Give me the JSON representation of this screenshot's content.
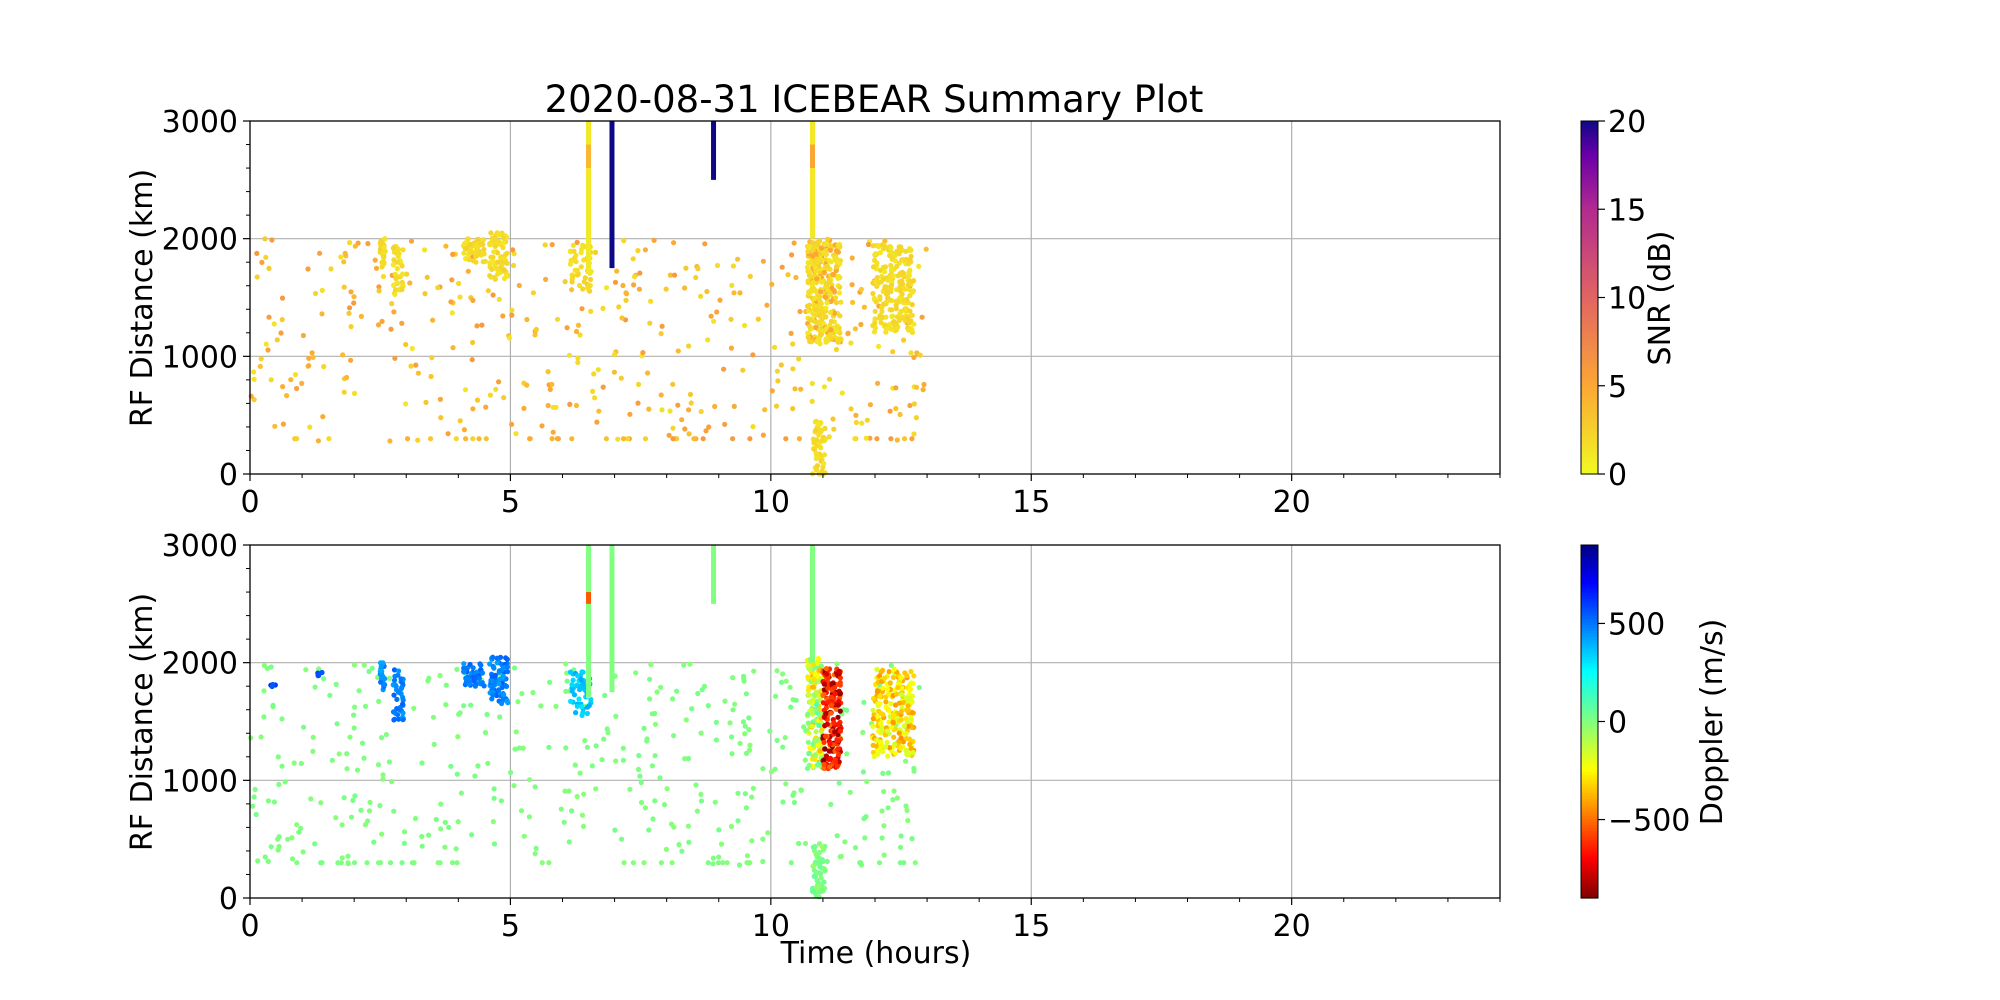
{
  "figure": {
    "title": "2020-08-31 ICEBEAR Summary Plot",
    "xlabel": "Time (hours)"
  },
  "chart_data": [
    {
      "type": "scatter",
      "panel": "top",
      "title": "2020-08-31 ICEBEAR Summary Plot",
      "xlabel": "",
      "ylabel": "RF Distance (km)",
      "xlim": [
        0,
        24
      ],
      "ylim": [
        0,
        3000
      ],
      "xticks": [
        0,
        5,
        10,
        15,
        20
      ],
      "yticks": [
        0,
        1000,
        2000,
        3000
      ],
      "grid": true,
      "color_field": "snr",
      "colorbar": {
        "label": "SNR (dB)",
        "min": 0,
        "max": 20,
        "ticks": [
          0,
          5,
          10,
          15,
          20
        ],
        "colormap": "plasma_r"
      },
      "vertical_streaks": [
        {
          "x": 6.5,
          "y0": 1700,
          "y1": 3000,
          "snr": 1,
          "mid_snr": 4
        },
        {
          "x": 6.95,
          "y0": 1750,
          "y1": 3000,
          "snr": 20
        },
        {
          "x": 8.9,
          "y0": 2500,
          "y1": 3000,
          "snr": 20
        },
        {
          "x": 10.8,
          "y0": 2000,
          "y1": 3000,
          "snr": 1,
          "mid_snr": 5
        }
      ],
      "clusters": [
        {
          "x0": 2.5,
          "x1": 2.6,
          "y0": 1750,
          "y1": 2000,
          "n": 25,
          "snr": 1
        },
        {
          "x0": 2.75,
          "x1": 2.95,
          "y0": 1500,
          "y1": 1950,
          "n": 40,
          "snr": 1
        },
        {
          "x0": 4.1,
          "x1": 4.5,
          "y0": 1800,
          "y1": 2000,
          "n": 50,
          "snr": 1
        },
        {
          "x0": 4.6,
          "x1": 4.95,
          "y0": 1650,
          "y1": 2050,
          "n": 70,
          "snr": 1
        },
        {
          "x0": 6.15,
          "x1": 6.55,
          "y0": 1550,
          "y1": 1950,
          "n": 50,
          "snr": 1
        },
        {
          "x0": 10.7,
          "x1": 11.35,
          "y0": 1100,
          "y1": 2000,
          "n": 320,
          "snr": 1,
          "speckle_snr": 5
        },
        {
          "x0": 10.8,
          "x1": 11.05,
          "y0": 0,
          "y1": 450,
          "n": 60,
          "snr": 1
        },
        {
          "x0": 11.95,
          "x1": 12.75,
          "y0": 1200,
          "y1": 1950,
          "n": 230,
          "snr": 1
        }
      ],
      "scatter": {
        "x0": 0,
        "x1": 13.0,
        "y0": 280,
        "y1": 2000,
        "n": 420,
        "snr_low": 1,
        "snr_high": 6
      }
    },
    {
      "type": "scatter",
      "panel": "bottom",
      "xlabel": "Time (hours)",
      "ylabel": "RF Distance (km)",
      "xlim": [
        0,
        24
      ],
      "ylim": [
        0,
        3000
      ],
      "xticks": [
        0,
        5,
        10,
        15,
        20
      ],
      "yticks": [
        0,
        1000,
        2000,
        3000
      ],
      "grid": true,
      "color_field": "doppler",
      "colorbar": {
        "label": "Doppler (m/s)",
        "min": -900,
        "max": 900,
        "ticks": [
          -500,
          0,
          500
        ],
        "colormap": "jet_r"
      },
      "vertical_streaks": [
        {
          "x": 6.5,
          "y0": 1700,
          "y1": 3000,
          "doppler": 0,
          "band": {
            "y0": 2500,
            "y1": 2600,
            "doppler": -550
          }
        },
        {
          "x": 6.95,
          "y0": 1750,
          "y1": 3000,
          "doppler": 0
        },
        {
          "x": 8.9,
          "y0": 2500,
          "y1": 3000,
          "doppler": 0
        },
        {
          "x": 10.8,
          "y0": 2000,
          "y1": 3000,
          "doppler": 0
        }
      ],
      "clusters": [
        {
          "x0": 0.4,
          "x1": 0.5,
          "y0": 1790,
          "y1": 1830,
          "n": 4,
          "doppler": 600
        },
        {
          "x0": 1.3,
          "x1": 1.4,
          "y0": 1890,
          "y1": 1930,
          "n": 4,
          "doppler": 600
        },
        {
          "x0": 2.5,
          "x1": 2.6,
          "y0": 1750,
          "y1": 2000,
          "n": 25,
          "doppler": 450
        },
        {
          "x0": 2.75,
          "x1": 2.95,
          "y0": 1500,
          "y1": 1950,
          "n": 40,
          "doppler": 480
        },
        {
          "x0": 4.1,
          "x1": 4.5,
          "y0": 1800,
          "y1": 2000,
          "n": 50,
          "doppler": 480
        },
        {
          "x0": 4.6,
          "x1": 4.95,
          "y0": 1650,
          "y1": 2050,
          "n": 70,
          "doppler": 480
        },
        {
          "x0": 6.15,
          "x1": 6.55,
          "y0": 1550,
          "y1": 1950,
          "n": 50,
          "doppler": 350
        },
        {
          "x0": 10.7,
          "x1": 11.0,
          "y0": 1100,
          "y1": 2050,
          "n": 140,
          "doppler": -150,
          "doppler_spread": 250
        },
        {
          "x0": 11.0,
          "x1": 11.35,
          "y0": 1100,
          "y1": 1950,
          "n": 180,
          "doppler": -700,
          "doppler_spread": 200
        },
        {
          "x0": 10.8,
          "x1": 11.05,
          "y0": 0,
          "y1": 450,
          "n": 60,
          "doppler": 0
        },
        {
          "x0": 11.95,
          "x1": 12.75,
          "y0": 1200,
          "y1": 1950,
          "n": 230,
          "doppler": -300,
          "doppler_spread": 150
        }
      ],
      "scatter": {
        "x0": 0,
        "x1": 13.0,
        "y0": 280,
        "y1": 2000,
        "n": 420,
        "doppler": 0
      }
    }
  ]
}
